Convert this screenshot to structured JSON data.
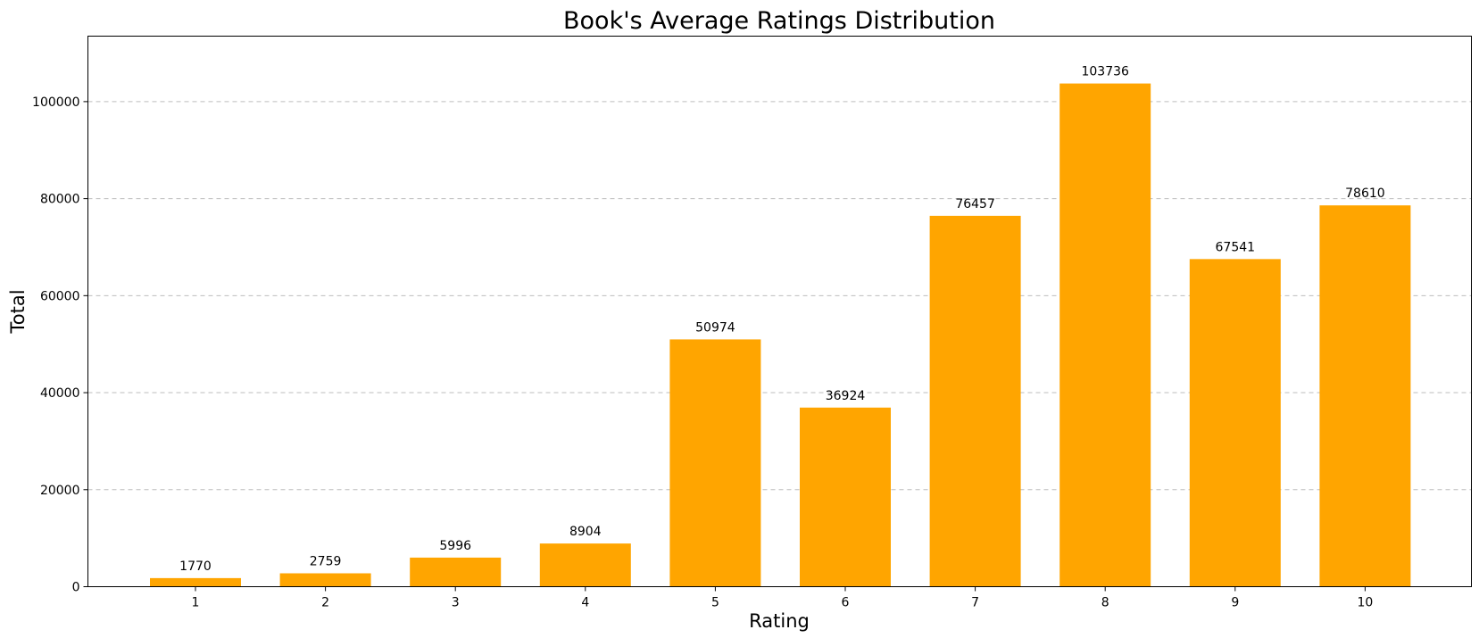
{
  "chart_data": {
    "type": "bar",
    "title": "Book's Average Ratings Distribution",
    "xlabel": "Rating",
    "ylabel": "Total",
    "categories": [
      "1",
      "2",
      "3",
      "4",
      "5",
      "6",
      "7",
      "8",
      "9",
      "10"
    ],
    "values": [
      1770,
      2759,
      5996,
      8904,
      50974,
      36924,
      76457,
      103736,
      67541,
      78610
    ],
    "ylim": [
      0,
      113500
    ],
    "yticks": [
      0,
      20000,
      40000,
      60000,
      80000,
      100000
    ],
    "grid": "y-dashed",
    "bar_color": "#FFA500",
    "legend": "none"
  }
}
